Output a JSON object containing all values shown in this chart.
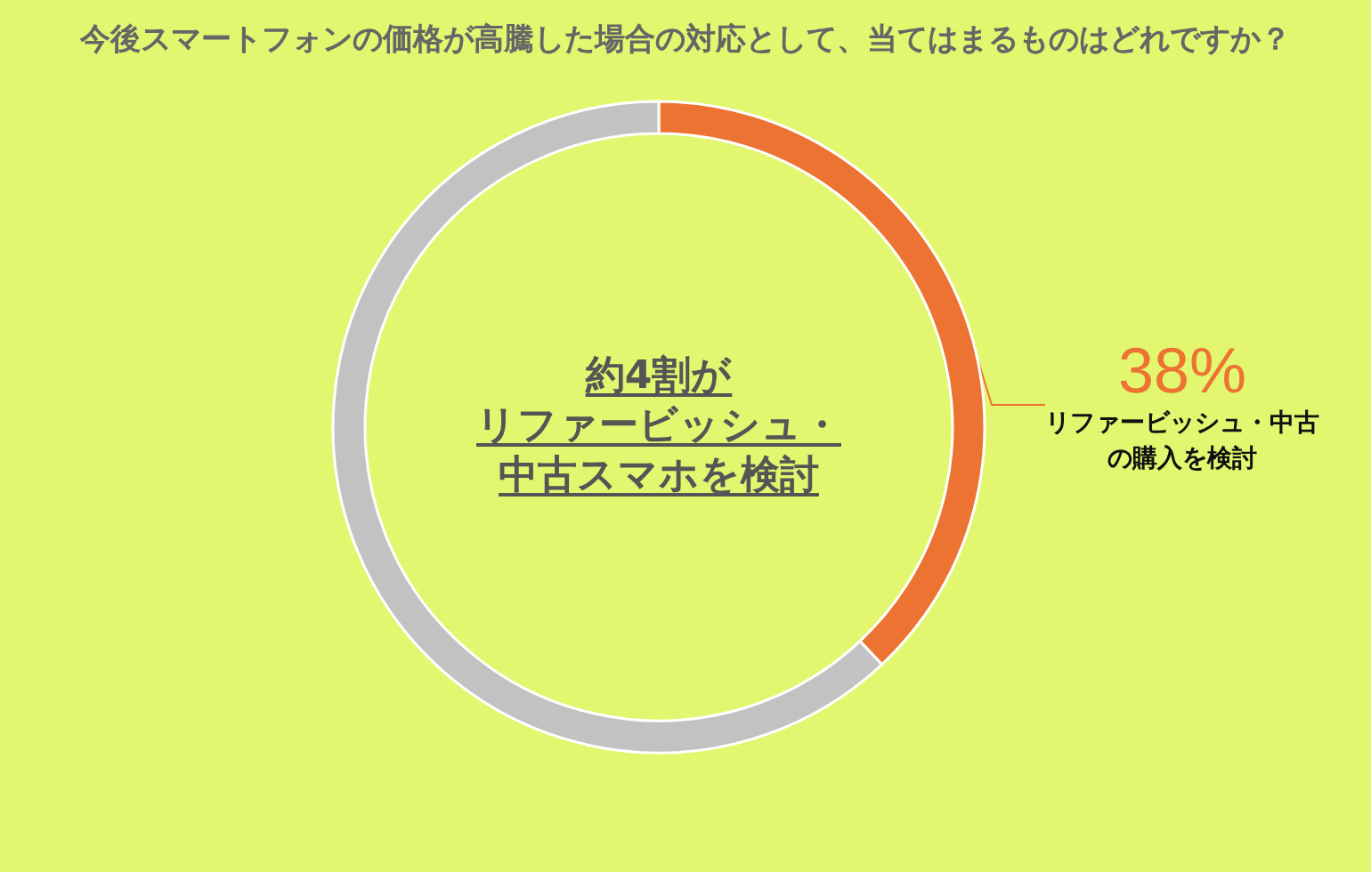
{
  "chart_data": {
    "type": "donut",
    "title": "今後スマートフォンの価格が高騰した場合の対応として、当てはまるものはどれですか？",
    "categories": [
      "リファービッシュ・中古の購入を検討",
      null
    ],
    "values": [
      38,
      62
    ],
    "colors": [
      "#ed7333",
      "#c2c2c2"
    ],
    "value_labels": [
      "38%",
      null
    ],
    "annotations": [
      "約4割が",
      "リファービッシュ・",
      "中古スマホを検討"
    ],
    "legend": false
  }
}
